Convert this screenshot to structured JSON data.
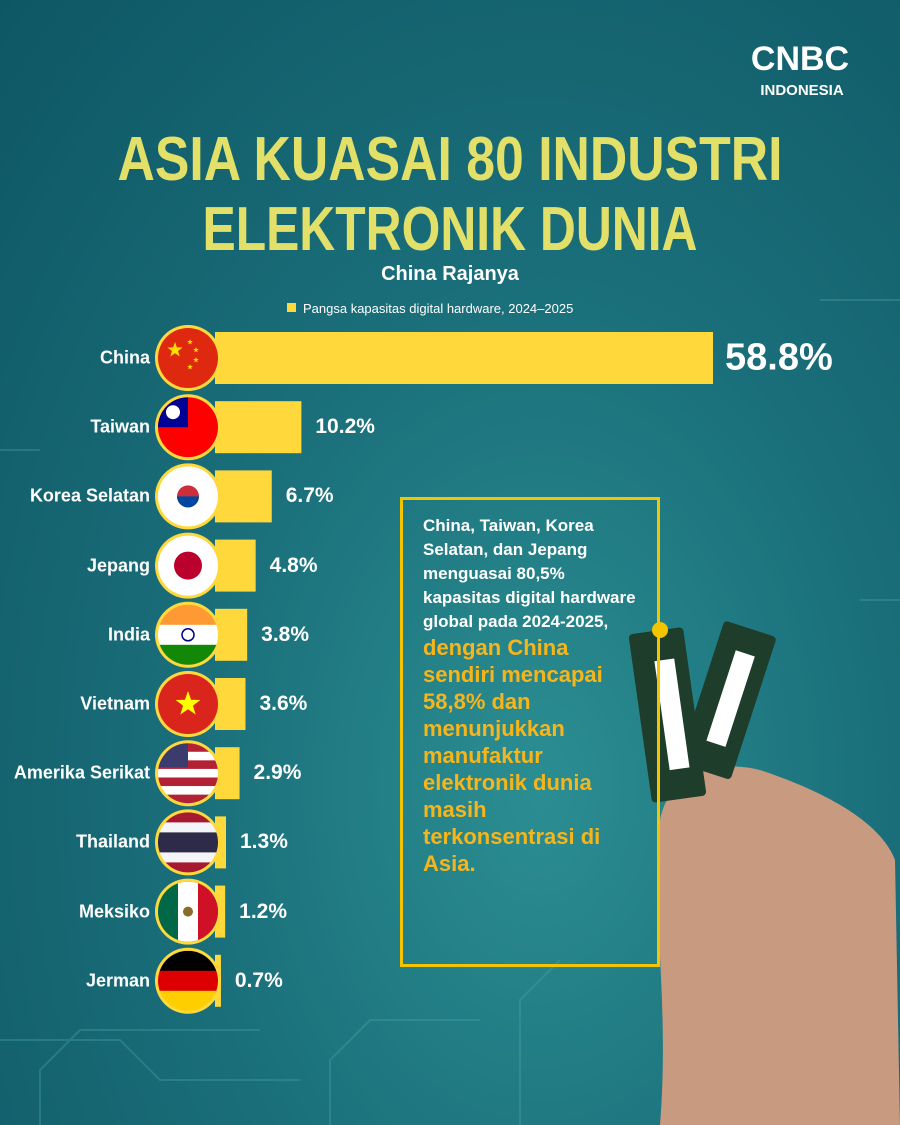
{
  "brand": {
    "name": "CNBC",
    "sub": "INDONESIA"
  },
  "chart_data": {
    "type": "bar",
    "orientation": "horizontal",
    "title": [
      "ASIA KUASAI 80 INDUSTRI",
      "ELEKTRONIK DUNIA"
    ],
    "subtitle": "China Rajanya",
    "series": [
      {
        "name": "Pangsa kapasitas digital hardware, 2024–2025",
        "color": "#ffd93b",
        "values": [
          58.8,
          10.2,
          6.7,
          4.8,
          3.8,
          3.6,
          2.9,
          1.3,
          1.2,
          0.7
        ],
        "value_labels": [
          "58.8%",
          "10.2%",
          "6.7%",
          "4.8%",
          "3.8%",
          "3.6%",
          "2.9%",
          "1.3%",
          "1.2%",
          "0.7%"
        ]
      }
    ],
    "categories": [
      "China",
      "Taiwan",
      "Korea Selatan",
      "Jepang",
      "India",
      "Vietnam",
      "Amerika Serikat",
      "Thailand",
      "Meksiko",
      "Jerman"
    ],
    "annotation": {
      "text": "China, Taiwan, Korea Selatan, dan Jepang menguasai 80,5% kapasitas digital hardware global pada 2024-2025,",
      "highlight": "dengan China sendiri mencapai 58,8% dan menunjukkan manufaktur elektronik dunia masih terkonsentrasi di Asia."
    }
  }
}
